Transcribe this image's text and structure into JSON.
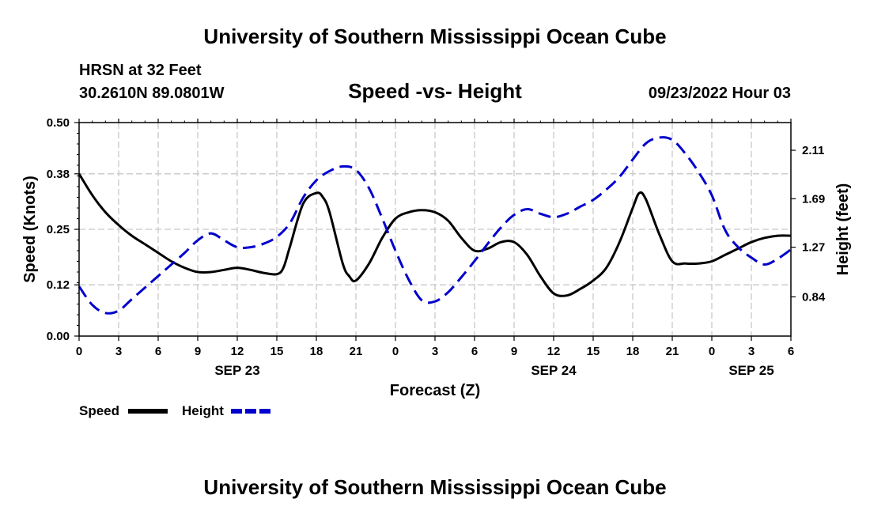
{
  "chart_data": {
    "type": "line",
    "title": "University of Southern Mississippi Ocean Cube",
    "subtitle": "Speed -vs- Height",
    "footer_title": "University of Southern Mississippi Ocean Cube",
    "station": "HRSN at 32 Feet",
    "location": "30.2610N  89.0801W",
    "run_time": "09/23/2022 Hour 03",
    "xlabel": "Forecast (Z)",
    "ylabel": "Speed (Knots)",
    "y2label": "Height (feet)",
    "x_hours": [
      0,
      54
    ],
    "ylim": [
      0,
      0.5
    ],
    "y2lim": [
      0.5,
      2.35
    ],
    "yticks": [
      0.0,
      0.12,
      0.25,
      0.38,
      0.5
    ],
    "ytick_labels": [
      "0.00",
      "0.12",
      "0.25",
      "0.38",
      "0.50"
    ],
    "y2ticks": [
      0.84,
      1.27,
      1.69,
      2.11
    ],
    "y2tick_labels": [
      "0.84",
      "1.27",
      "1.69",
      "2.11"
    ],
    "xticks": [
      0,
      3,
      6,
      9,
      12,
      15,
      18,
      21,
      24,
      27,
      30,
      33,
      36,
      39,
      42,
      45,
      48,
      51,
      54
    ],
    "xtick_labels": [
      "0",
      "3",
      "6",
      "9",
      "12",
      "15",
      "18",
      "21",
      "0",
      "3",
      "6",
      "9",
      "12",
      "15",
      "18",
      "21",
      "0",
      "3",
      "6"
    ],
    "date_labels": [
      {
        "hour": 12,
        "text": "SEP 23"
      },
      {
        "hour": 36,
        "text": "SEP 24"
      },
      {
        "hour": 51,
        "text": "SEP 25"
      }
    ],
    "grid": true,
    "legend_position": "bottom-left",
    "series": [
      {
        "name": "Speed",
        "axis": "left",
        "color": "#000000",
        "style": "solid",
        "x": [
          0,
          1,
          2,
          3,
          4,
          5,
          6,
          7,
          8,
          9,
          10,
          11,
          12,
          13,
          14,
          15,
          15.5,
          16,
          17,
          18,
          18.5,
          19,
          20,
          20.5,
          21,
          22,
          23,
          24,
          25,
          26,
          27,
          28,
          29,
          30,
          31,
          32,
          33,
          34,
          35,
          36,
          37,
          38,
          39,
          40,
          41,
          42,
          42.5,
          43,
          44,
          45,
          46,
          47,
          48,
          49,
          50,
          51,
          52,
          53,
          54
        ],
        "values": [
          0.38,
          0.33,
          0.29,
          0.26,
          0.235,
          0.215,
          0.195,
          0.175,
          0.16,
          0.15,
          0.15,
          0.155,
          0.16,
          0.155,
          0.148,
          0.145,
          0.16,
          0.21,
          0.31,
          0.335,
          0.325,
          0.29,
          0.17,
          0.14,
          0.13,
          0.17,
          0.23,
          0.275,
          0.29,
          0.295,
          0.29,
          0.27,
          0.23,
          0.2,
          0.205,
          0.22,
          0.22,
          0.19,
          0.14,
          0.1,
          0.095,
          0.11,
          0.13,
          0.16,
          0.22,
          0.3,
          0.335,
          0.32,
          0.24,
          0.175,
          0.17,
          0.17,
          0.175,
          0.19,
          0.205,
          0.22,
          0.23,
          0.235,
          0.235
        ]
      },
      {
        "name": "Height",
        "axis": "right",
        "color": "#0000cc",
        "style": "dashed",
        "x": [
          0,
          1,
          2,
          3,
          4,
          5,
          6,
          7,
          8,
          9,
          10,
          11,
          12,
          13,
          14,
          15,
          16,
          17,
          18,
          19,
          20,
          21,
          22,
          23,
          24,
          25,
          26,
          27,
          28,
          29,
          30,
          31,
          32,
          33,
          34,
          35,
          36,
          37,
          38,
          39,
          40,
          41,
          42,
          43,
          44,
          45,
          46,
          47,
          48,
          49,
          50,
          51,
          52,
          53,
          54
        ],
        "values": [
          0.93,
          0.77,
          0.7,
          0.72,
          0.82,
          0.92,
          1.02,
          1.12,
          1.22,
          1.33,
          1.39,
          1.33,
          1.27,
          1.27,
          1.3,
          1.36,
          1.48,
          1.7,
          1.85,
          1.93,
          1.97,
          1.94,
          1.78,
          1.52,
          1.24,
          0.99,
          0.81,
          0.8,
          0.88,
          1.01,
          1.15,
          1.3,
          1.44,
          1.55,
          1.6,
          1.56,
          1.53,
          1.56,
          1.62,
          1.68,
          1.77,
          1.88,
          2.03,
          2.17,
          2.22,
          2.2,
          2.08,
          1.92,
          1.72,
          1.42,
          1.27,
          1.18,
          1.12,
          1.17,
          1.25
        ]
      }
    ]
  }
}
